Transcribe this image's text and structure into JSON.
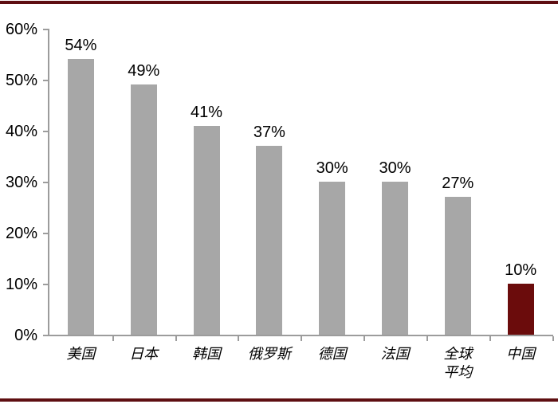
{
  "decorations": {
    "top_rule_color": "#5e0e11",
    "bottom_rule_color": "#5e0e11"
  },
  "chart_data": {
    "type": "bar",
    "title": "",
    "xlabel": "",
    "ylabel": "",
    "categories": [
      "美国",
      "日本",
      "韩国",
      "俄罗斯",
      "德国",
      "法国",
      "全球平均",
      "中国"
    ],
    "category_label_lines": [
      [
        "美国"
      ],
      [
        "日本"
      ],
      [
        "韩国"
      ],
      [
        "俄罗斯"
      ],
      [
        "德国"
      ],
      [
        "法国"
      ],
      [
        "全球",
        "平均"
      ],
      [
        "中国"
      ]
    ],
    "values": [
      54,
      49,
      41,
      37,
      30,
      30,
      27,
      10
    ],
    "value_labels": [
      "54%",
      "49%",
      "41%",
      "37%",
      "30%",
      "30%",
      "27%",
      "10%"
    ],
    "y_tick_labels": [
      "60%",
      "50%",
      "40%",
      "30%",
      "20%",
      "10%",
      "0%"
    ],
    "ylim": [
      0,
      60
    ],
    "grid": false,
    "legend": false,
    "bar_color": "#a7a7a7",
    "highlight_bar_color": "#6b0c0c",
    "highlight_index": 7,
    "axis_color": "#9c9c9c",
    "text_color": "#000000"
  }
}
